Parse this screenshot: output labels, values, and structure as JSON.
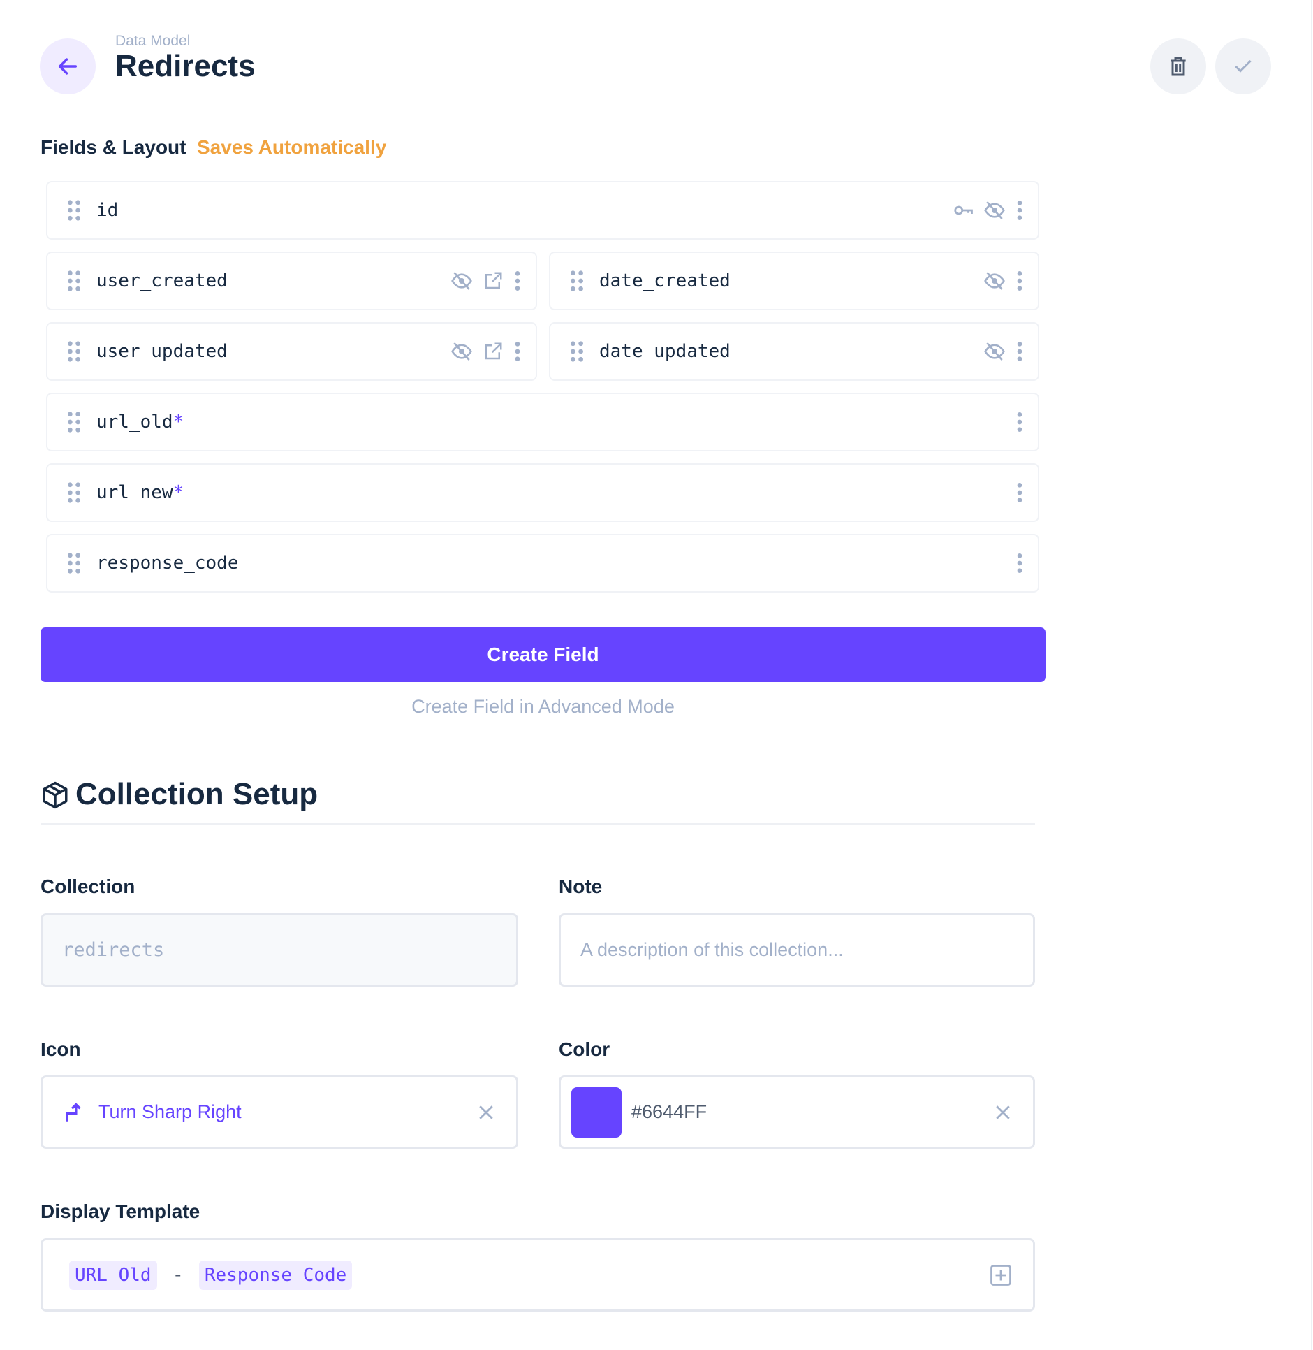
{
  "header": {
    "breadcrumb": "Data Model",
    "title": "Redirects"
  },
  "fields_section": {
    "title": "Fields & Layout",
    "subtitle": "Saves Automatically"
  },
  "fields": [
    {
      "name": "id",
      "required": "",
      "icons": [
        "key-icon",
        "eye-off-icon",
        "more-vertical-icon"
      ]
    },
    {
      "name": "user_created",
      "required": "",
      "icons": [
        "eye-off-icon",
        "open-in-new-icon",
        "more-vertical-icon"
      ]
    },
    {
      "name": "date_created",
      "required": "",
      "icons": [
        "eye-off-icon",
        "more-vertical-icon"
      ]
    },
    {
      "name": "user_updated",
      "required": "",
      "icons": [
        "eye-off-icon",
        "open-in-new-icon",
        "more-vertical-icon"
      ]
    },
    {
      "name": "date_updated",
      "required": "",
      "icons": [
        "eye-off-icon",
        "more-vertical-icon"
      ]
    },
    {
      "name": "url_old",
      "required": "*",
      "icons": [
        "more-vertical-icon"
      ]
    },
    {
      "name": "url_new",
      "required": "*",
      "icons": [
        "more-vertical-icon"
      ]
    },
    {
      "name": "response_code",
      "required": "",
      "icons": [
        "more-vertical-icon"
      ]
    }
  ],
  "actions": {
    "create_field": "Create Field",
    "advanced": "Create Field in Advanced Mode"
  },
  "setup": {
    "title": "Collection Setup",
    "collection_label": "Collection",
    "collection_value": "redirects",
    "note_label": "Note",
    "note_placeholder": "A description of this collection...",
    "icon_label": "Icon",
    "icon_value": "Turn Sharp Right",
    "color_label": "Color",
    "color_value": "#6644FF",
    "template_label": "Display Template",
    "template": {
      "chip1": "URL Old",
      "separator": "-",
      "chip2": "Response Code"
    }
  },
  "colors": {
    "accent": "#6644FF",
    "warning": "#F0A23E",
    "icon": "#A2B0C9"
  }
}
